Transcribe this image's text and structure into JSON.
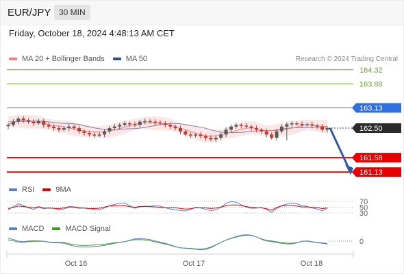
{
  "header": {
    "pair": "EUR/JPY",
    "timeframe": "30 MIN",
    "timestamp": "Friday, October 18, 2024 4:48:13 AM CET"
  },
  "legend_main": [
    {
      "name": "MA 20 + Bollinger Bands",
      "color": "#f08080"
    },
    {
      "name": "MA 50",
      "color": "#2e4f8f"
    }
  ],
  "credit": "Research © 2024 Trading Central",
  "legend_rsi": [
    {
      "name": "RSI",
      "color": "#5b7fd6"
    },
    {
      "name": "9MA",
      "color": "#e60000"
    }
  ],
  "legend_macd": [
    {
      "name": "MACD",
      "color": "#5b7fd6"
    },
    {
      "name": "MACD Signal",
      "color": "#3a9a1a"
    }
  ],
  "colors": {
    "up_candle": "#5a5a5a",
    "down_candle": "#c0392b",
    "resistance_green": "#6aab2a",
    "pivot_blue": "#2f6fe0",
    "support_red": "#e60000",
    "bands_fill": "#fde3e3",
    "ma20": "#f08080",
    "ma50": "#8080b0",
    "arrow": "#2e5aa8"
  },
  "chart_data": [
    {
      "type": "candlestick",
      "title": "EUR/JPY 30 MIN",
      "x_ticks": [
        "Oct 16",
        "Oct 17",
        "Oct 18"
      ],
      "ylim": [
        160.9,
        164.55
      ],
      "levels": [
        {
          "value": 164.32,
          "label": "164.32",
          "kind": "resistance"
        },
        {
          "value": 163.88,
          "label": "163.88",
          "kind": "resistance"
        },
        {
          "value": 163.13,
          "label": "163.13",
          "kind": "pivot"
        },
        {
          "value": 162.5,
          "label": "162.50",
          "kind": "last_price"
        },
        {
          "value": 161.58,
          "label": "161.58",
          "kind": "support"
        },
        {
          "value": 161.13,
          "label": "161.13",
          "kind": "support"
        }
      ],
      "close_series_approx": [
        162.6,
        162.7,
        162.8,
        162.75,
        162.7,
        162.65,
        162.72,
        162.6,
        162.55,
        162.5,
        162.45,
        162.5,
        162.55,
        162.5,
        162.4,
        162.35,
        162.3,
        162.28,
        162.3,
        162.4,
        162.5,
        162.55,
        162.6,
        162.65,
        162.62,
        162.6,
        162.7,
        162.72,
        162.7,
        162.68,
        162.65,
        162.6,
        162.55,
        162.5,
        162.4,
        162.3,
        162.28,
        162.3,
        162.25,
        162.2,
        162.15,
        162.2,
        162.3,
        162.45,
        162.55,
        162.6,
        162.58,
        162.55,
        162.5,
        162.45,
        162.4,
        162.3,
        162.2,
        162.4,
        162.55,
        162.62,
        162.65,
        162.63,
        162.6,
        162.62,
        162.58,
        162.55,
        162.45,
        162.5
      ],
      "projection": {
        "from": 162.5,
        "to": 161.13
      }
    },
    {
      "type": "line",
      "name": "RSI",
      "series": [
        {
          "name": "RSI"
        },
        {
          "name": "9MA"
        }
      ],
      "y_ticks": [
        70,
        50,
        30
      ],
      "ylim": [
        20,
        80
      ]
    },
    {
      "type": "line",
      "name": "MACD",
      "series": [
        {
          "name": "MACD"
        },
        {
          "name": "MACD Signal"
        }
      ],
      "y_ticks": [
        0
      ]
    }
  ]
}
